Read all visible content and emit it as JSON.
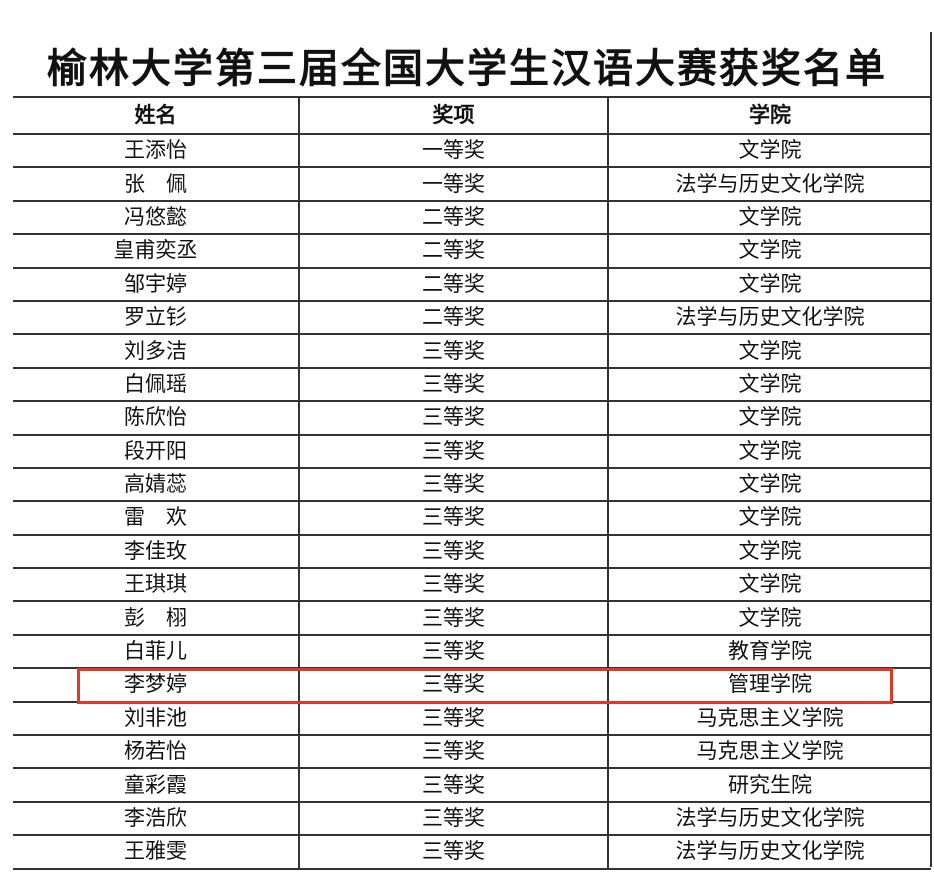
{
  "title": "榆林大学第三届全国大学生汉语大赛获奖名单",
  "headers": [
    "姓名",
    "奖项",
    "学院"
  ],
  "highlight_color": "#e0392b",
  "highlighted_row": "李梦婷",
  "rows": [
    [
      "王添怡",
      "一等奖",
      "文学院"
    ],
    [
      "张　佩",
      "一等奖",
      "法学与历史文化学院"
    ],
    [
      "冯悠懿",
      "二等奖",
      "文学院"
    ],
    [
      "皇甫奕丞",
      "二等奖",
      "文学院"
    ],
    [
      "邹宇婷",
      "二等奖",
      "文学院"
    ],
    [
      "罗立钐",
      "二等奖",
      "法学与历史文化学院"
    ],
    [
      "刘多洁",
      "三等奖",
      "文学院"
    ],
    [
      "白佩瑶",
      "三等奖",
      "文学院"
    ],
    [
      "陈欣怡",
      "三等奖",
      "文学院"
    ],
    [
      "段开阳",
      "三等奖",
      "文学院"
    ],
    [
      "高婧蕊",
      "三等奖",
      "文学院"
    ],
    [
      "雷　欢",
      "三等奖",
      "文学院"
    ],
    [
      "李佳玫",
      "三等奖",
      "文学院"
    ],
    [
      "王琪琪",
      "三等奖",
      "文学院"
    ],
    [
      "彭　栩",
      "三等奖",
      "文学院"
    ],
    [
      "白菲儿",
      "三等奖",
      "教育学院"
    ],
    [
      "李梦婷",
      "三等奖",
      "管理学院"
    ],
    [
      "刘非池",
      "三等奖",
      "马克思主义学院"
    ],
    [
      "杨若怡",
      "三等奖",
      "马克思主义学院"
    ],
    [
      "童彩霞",
      "三等奖",
      "研究生院"
    ],
    [
      "李浩欣",
      "三等奖",
      "法学与历史文化学院"
    ],
    [
      "王雅雯",
      "三等奖",
      "法学与历史文化学院"
    ]
  ]
}
